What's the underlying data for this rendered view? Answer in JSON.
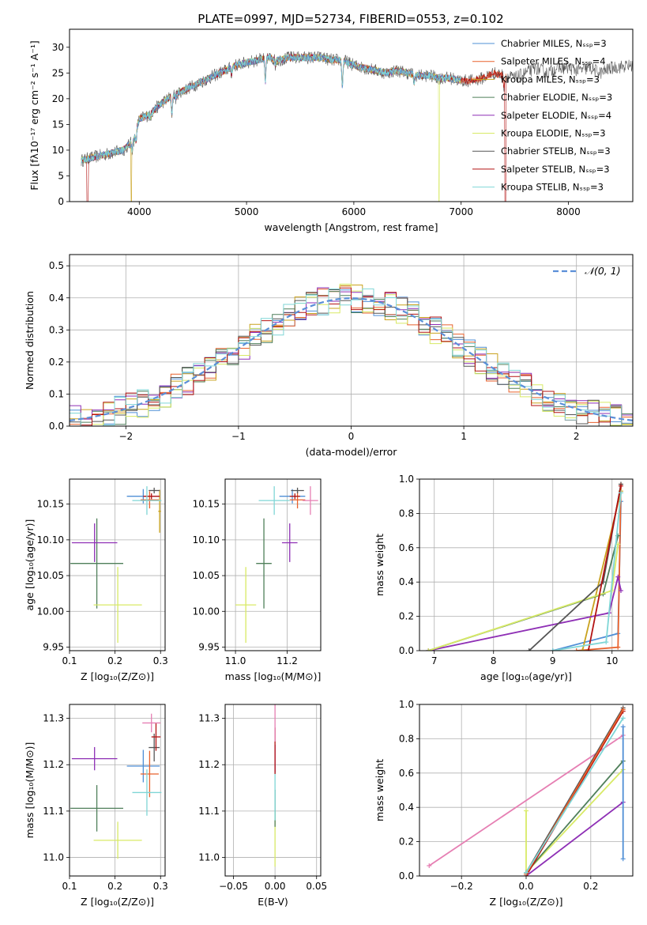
{
  "title": "PLATE=0997, MJD=52734, FIBERID=0553, z=0.102",
  "colors": {
    "chabrier_miles": "#4f8fd6",
    "salpeter_miles": "#e8612c",
    "kroupa_miles": "#c9a21e",
    "chabrier_elodie": "#4f7f5a",
    "salpeter_elodie": "#8e2fb5",
    "kroupa_elodie": "#d8ea66",
    "chabrier_stelib": "#555555",
    "salpeter_stelib": "#b31313",
    "kroupa_stelib": "#7fd6d6",
    "gauss": "#5b8fd8",
    "pink": "#e67fb3"
  },
  "chart_data": [
    {
      "id": "spectrum",
      "type": "line",
      "title": "PLATE=0997, MJD=52734, FIBERID=0553, z=0.102",
      "xlabel": "wavelength [Angstrom, rest frame]",
      "ylabel": "Flux [fλ10⁻¹⁷ erg cm⁻² s⁻¹ A⁻¹]",
      "xlim": [
        3350,
        8600
      ],
      "ylim": [
        0,
        33.5
      ],
      "xticks": [
        "4000",
        "5000",
        "6000",
        "7000",
        "8000"
      ],
      "yticks": [
        "0",
        "5",
        "10",
        "15",
        "20",
        "25",
        "30"
      ],
      "legend_position": "top-right",
      "legend": [
        "Chabrier MILES, Nₛₛₚ=3",
        "Salpeter MILES, Nₛₛₚ=4",
        "Kroupa MILES, Nₛₛₚ=3",
        "Chabrier ELODIE, Nₛₛₚ=3",
        "Salpeter ELODIE, Nₛₛₚ=4",
        "Kroupa ELODIE, Nₛₛₚ=3",
        "Chabrier STELIB, Nₛₛₚ=3",
        "Salpeter STELIB, Nₛₛₚ=3",
        "Kroupa STELIB, Nₛₛₚ=3"
      ],
      "continuum": [
        [
          3460,
          8
        ],
        [
          3550,
          8.5
        ],
        [
          3650,
          9
        ],
        [
          3750,
          9.5
        ],
        [
          3850,
          10
        ],
        [
          3950,
          12
        ],
        [
          4000,
          16
        ],
        [
          4100,
          17
        ],
        [
          4200,
          19
        ],
        [
          4300,
          20.5
        ],
        [
          4400,
          21.5
        ],
        [
          4500,
          22.5
        ],
        [
          4600,
          23.5
        ],
        [
          4700,
          24.5
        ],
        [
          4800,
          25.5
        ],
        [
          4900,
          26.5
        ],
        [
          5000,
          27
        ],
        [
          5100,
          27.5
        ],
        [
          5200,
          28
        ],
        [
          5300,
          27.5
        ],
        [
          5400,
          28
        ],
        [
          5500,
          28
        ],
        [
          5600,
          28
        ],
        [
          5700,
          28
        ],
        [
          5800,
          27.5
        ],
        [
          5900,
          27.5
        ],
        [
          6000,
          26.5
        ],
        [
          6100,
          26
        ],
        [
          6200,
          25.5
        ],
        [
          6300,
          25
        ],
        [
          6400,
          25.5
        ],
        [
          6500,
          25
        ],
        [
          6600,
          24.5
        ],
        [
          6700,
          24.5
        ],
        [
          6800,
          24
        ],
        [
          6900,
          24
        ],
        [
          7000,
          23.5
        ],
        [
          7100,
          23.5
        ],
        [
          7200,
          24
        ],
        [
          7300,
          25
        ],
        [
          7400,
          24.5
        ],
        [
          7500,
          24
        ],
        [
          7600,
          25
        ],
        [
          7700,
          26
        ],
        [
          7800,
          25
        ],
        [
          7900,
          26
        ],
        [
          8000,
          26
        ],
        [
          8100,
          25.5
        ],
        [
          8200,
          26
        ],
        [
          8300,
          25
        ],
        [
          8400,
          26
        ],
        [
          8600,
          26.5
        ]
      ],
      "absorption": [
        [
          3934,
          1.6
        ],
        [
          3969,
          1.6
        ],
        [
          4102,
          0.7
        ],
        [
          4304,
          3.5
        ],
        [
          4340,
          0.8
        ],
        [
          4861,
          1.2
        ],
        [
          5175,
          4.5
        ],
        [
          5270,
          1.2
        ],
        [
          5893,
          5
        ],
        [
          6563,
          1.5
        ],
        [
          7400,
          2
        ]
      ]
    },
    {
      "id": "residual-hist",
      "type": "bar",
      "xlabel": "(data-model)/error",
      "ylabel": "Normed distribution",
      "xlim": [
        -2.5,
        2.5
      ],
      "ylim": [
        0,
        0.535
      ],
      "xticks": [
        "−2",
        "−1",
        "0",
        "1",
        "2"
      ],
      "yticks": [
        "0.0",
        "0.1",
        "0.2",
        "0.3",
        "0.4",
        "0.5"
      ],
      "legend_position": "top-right",
      "legend": [
        "𝒩(0, 1)"
      ],
      "bin_width": 0.1
    },
    {
      "id": "z-age",
      "type": "scatter",
      "xlabel": "Z [log₁₀(Z/Z⊙)]",
      "ylabel": "age  [log₁₀(age/yr)]",
      "xlim": [
        0.1,
        0.31
      ],
      "ylim": [
        9.945,
        10.185
      ],
      "xticks": [
        "0.1",
        "0.2",
        "0.3"
      ],
      "yticks": [
        "9.95",
        "10.00",
        "10.05",
        "10.10",
        "10.15"
      ],
      "points": [
        {
          "c": "chabrier_miles",
          "x": 0.262,
          "y": 10.161,
          "xe": 0.036,
          "ye": 0.01
        },
        {
          "c": "salpeter_miles",
          "x": 0.276,
          "y": 10.156,
          "xe": 0.02,
          "ye": 0.012
        },
        {
          "c": "kroupa_miles",
          "x": 0.298,
          "y": 10.14,
          "xe": 0.003,
          "ye": 0.03
        },
        {
          "c": "chabrier_elodie",
          "x": 0.16,
          "y": 10.067,
          "xe": 0.058,
          "ye": 0.063
        },
        {
          "c": "salpeter_elodie",
          "x": 0.155,
          "y": 10.096,
          "xe": 0.05,
          "ye": 0.027
        },
        {
          "c": "kroupa_elodie",
          "x": 0.206,
          "y": 10.009,
          "xe": 0.053,
          "ye": 0.053
        },
        {
          "c": "chabrier_stelib",
          "x": 0.286,
          "y": 10.169,
          "xe": 0.012,
          "ye": 0.004
        },
        {
          "c": "salpeter_stelib",
          "x": 0.28,
          "y": 10.161,
          "xe": 0.018,
          "ye": 0.004
        },
        {
          "c": "kroupa_stelib",
          "x": 0.27,
          "y": 10.155,
          "xe": 0.032,
          "ye": 0.02
        }
      ]
    },
    {
      "id": "mass-age",
      "type": "scatter",
      "xlabel": "mass [log₁₀(M/M⊙)]",
      "ylabel": "",
      "xlim": [
        10.96,
        11.33
      ],
      "ylim": [
        9.945,
        10.185
      ],
      "xticks": [
        "11.0",
        "11.2"
      ],
      "yticks": [
        "9.95",
        "10.00",
        "10.05",
        "10.10",
        "10.15"
      ],
      "points": [
        {
          "c": "chabrier_miles",
          "x": 11.22,
          "y": 10.161,
          "xe": 0.05,
          "ye": 0.01
        },
        {
          "c": "salpeter_miles",
          "x": 11.24,
          "y": 10.156,
          "xe": 0.03,
          "ye": 0.012
        },
        {
          "c": "chabrier_elodie",
          "x": 11.11,
          "y": 10.067,
          "xe": 0.03,
          "ye": 0.063
        },
        {
          "c": "salpeter_elodie",
          "x": 11.21,
          "y": 10.096,
          "xe": 0.03,
          "ye": 0.027
        },
        {
          "c": "kroupa_elodie",
          "x": 11.04,
          "y": 10.009,
          "xe": 0.04,
          "ye": 0.053
        },
        {
          "c": "chabrier_stelib",
          "x": 11.24,
          "y": 10.169,
          "xe": 0.025,
          "ye": 0.004
        },
        {
          "c": "salpeter_stelib",
          "x": 11.23,
          "y": 10.161,
          "xe": 0.02,
          "ye": 0.004
        },
        {
          "c": "kroupa_stelib",
          "x": 11.15,
          "y": 10.155,
          "xe": 0.06,
          "ye": 0.02
        },
        {
          "c": "pink",
          "x": 11.29,
          "y": 10.155,
          "xe": 0.03,
          "ye": 0.02
        }
      ]
    },
    {
      "id": "age-massweight",
      "type": "line",
      "xlabel": "age  [log₁₀(age/yr)]",
      "ylabel": "mass weight",
      "xlim": [
        6.75,
        10.35
      ],
      "ylim": [
        0,
        1
      ],
      "xticks": [
        "7",
        "8",
        "9",
        "10"
      ],
      "yticks": [
        "0.0",
        "0.2",
        "0.4",
        "0.6",
        "0.8",
        "1.0"
      ],
      "series": [
        {
          "c": "chabrier_miles",
          "x": [
            9.0,
            10.1,
            10.15
          ],
          "y": [
            0.0,
            0.1,
            0.87
          ]
        },
        {
          "c": "salpeter_miles",
          "x": [
            9.4,
            10.1,
            10.15
          ],
          "y": [
            0.0,
            0.02,
            0.97
          ]
        },
        {
          "c": "kroupa_miles",
          "x": [
            9.5,
            10.15
          ],
          "y": [
            0.0,
            0.93
          ]
        },
        {
          "c": "chabrier_elodie",
          "x": [
            6.9,
            9.85,
            10.1
          ],
          "y": [
            0.0,
            0.33,
            0.67
          ]
        },
        {
          "c": "salpeter_elodie",
          "x": [
            6.9,
            9.95,
            10.1,
            10.15
          ],
          "y": [
            0.0,
            0.22,
            0.43,
            0.35
          ]
        },
        {
          "c": "kroupa_elodie",
          "x": [
            6.9,
            10.0,
            10.1
          ],
          "y": [
            0.0,
            0.35,
            0.62
          ]
        },
        {
          "c": "chabrier_stelib",
          "x": [
            8.6,
            9.85,
            10.15
          ],
          "y": [
            0.0,
            0.4,
            0.97
          ]
        },
        {
          "c": "salpeter_stelib",
          "x": [
            9.6,
            10.15
          ],
          "y": [
            0.0,
            0.96
          ]
        },
        {
          "c": "kroupa_stelib",
          "x": [
            9.0,
            9.9,
            10.15
          ],
          "y": [
            0.0,
            0.05,
            0.92
          ]
        }
      ]
    },
    {
      "id": "z-mass",
      "type": "scatter",
      "xlabel": "Z [log₁₀(Z/Z⊙)]",
      "ylabel": "mass [log₁₀(M/M⊙)]",
      "xlim": [
        0.1,
        0.31
      ],
      "ylim": [
        10.96,
        11.33
      ],
      "xticks": [
        "0.1",
        "0.2",
        "0.3"
      ],
      "yticks": [
        "11.0",
        "11.1",
        "11.2",
        "11.3"
      ],
      "points": [
        {
          "c": "chabrier_miles",
          "x": 0.262,
          "y": 11.197,
          "xe": 0.036,
          "ye": 0.035
        },
        {
          "c": "salpeter_miles",
          "x": 0.276,
          "y": 11.18,
          "xe": 0.02,
          "ye": 0.05
        },
        {
          "c": "chabrier_elodie",
          "x": 0.16,
          "y": 11.106,
          "xe": 0.058,
          "ye": 0.05
        },
        {
          "c": "salpeter_elodie",
          "x": 0.155,
          "y": 11.213,
          "xe": 0.05,
          "ye": 0.025
        },
        {
          "c": "kroupa_elodie",
          "x": 0.206,
          "y": 11.037,
          "xe": 0.053,
          "ye": 0.04
        },
        {
          "c": "chabrier_stelib",
          "x": 0.286,
          "y": 11.237,
          "xe": 0.012,
          "ye": 0.03
        },
        {
          "c": "salpeter_stelib",
          "x": 0.29,
          "y": 11.26,
          "xe": 0.01,
          "ye": 0.03
        },
        {
          "c": "kroupa_stelib",
          "x": 0.27,
          "y": 11.14,
          "xe": 0.032,
          "ye": 0.05
        },
        {
          "c": "pink",
          "x": 0.28,
          "y": 11.29,
          "xe": 0.02,
          "ye": 0.02
        }
      ]
    },
    {
      "id": "ebv-mass",
      "type": "scatter",
      "xlabel": "E(B-V)",
      "ylabel": "",
      "xlim": [
        -0.06,
        0.055
      ],
      "ylim": [
        10.96,
        11.33
      ],
      "xticks": [
        "−0.05",
        "0.00",
        "0.05"
      ],
      "yticks": [
        "11.0",
        "11.1",
        "11.2",
        "11.3"
      ],
      "points": [
        {
          "c": "kroupa_elodie",
          "x": 0.0,
          "y": 11.04,
          "xe": 0,
          "ye": 0.06
        },
        {
          "c": "chabrier_elodie",
          "x": 0.0,
          "y": 11.106,
          "xe": 0,
          "ye": 0.04
        },
        {
          "c": "kroupa_stelib",
          "x": 0.0,
          "y": 11.14,
          "xe": 0,
          "ye": 0.06
        },
        {
          "c": "salpeter_elodie",
          "x": 0.0,
          "y": 11.213,
          "xe": 0,
          "ye": 0.03
        },
        {
          "c": "salpeter_stelib",
          "x": 0.0,
          "y": 11.23,
          "xe": 0,
          "ye": 0.05
        },
        {
          "c": "pink",
          "x": 0.0,
          "y": 11.29,
          "xe": 0,
          "ye": 0.04
        }
      ]
    },
    {
      "id": "z-massweight",
      "type": "line",
      "xlabel": "Z [log₁₀(Z/Z⊙)]",
      "ylabel": "mass weight",
      "xlim": [
        -0.33,
        0.33
      ],
      "ylim": [
        0,
        1
      ],
      "xticks": [
        "−0.2",
        "0.0",
        "0.2"
      ],
      "yticks": [
        "0.0",
        "0.2",
        "0.4",
        "0.6",
        "0.8",
        "1.0"
      ],
      "series": [
        {
          "c": "pink",
          "x": [
            -0.3,
            0.3
          ],
          "y": [
            0.06,
            0.82
          ]
        },
        {
          "c": "kroupa_elodie",
          "x": [
            0.0,
            0.0,
            0.3
          ],
          "y": [
            0.38,
            0.02,
            0.62
          ]
        },
        {
          "c": "chabrier_elodie",
          "x": [
            0.0,
            0.3
          ],
          "y": [
            0.02,
            0.67
          ]
        },
        {
          "c": "salpeter_elodie",
          "x": [
            0.0,
            0.3
          ],
          "y": [
            0.0,
            0.43
          ]
        },
        {
          "c": "chabrier_stelib",
          "x": [
            0.0,
            0.3
          ],
          "y": [
            0.02,
            0.98
          ]
        },
        {
          "c": "salpeter_stelib",
          "x": [
            0.0,
            0.3
          ],
          "y": [
            0.0,
            0.96
          ]
        },
        {
          "c": "salpeter_miles",
          "x": [
            0.0,
            0.3
          ],
          "y": [
            0.01,
            0.97
          ]
        },
        {
          "c": "kroupa_stelib",
          "x": [
            0.0,
            0.3
          ],
          "y": [
            0.02,
            0.92
          ]
        },
        {
          "c": "chabrier_miles",
          "x": [
            0.3,
            0.3
          ],
          "y": [
            0.1,
            0.87
          ]
        }
      ]
    }
  ]
}
